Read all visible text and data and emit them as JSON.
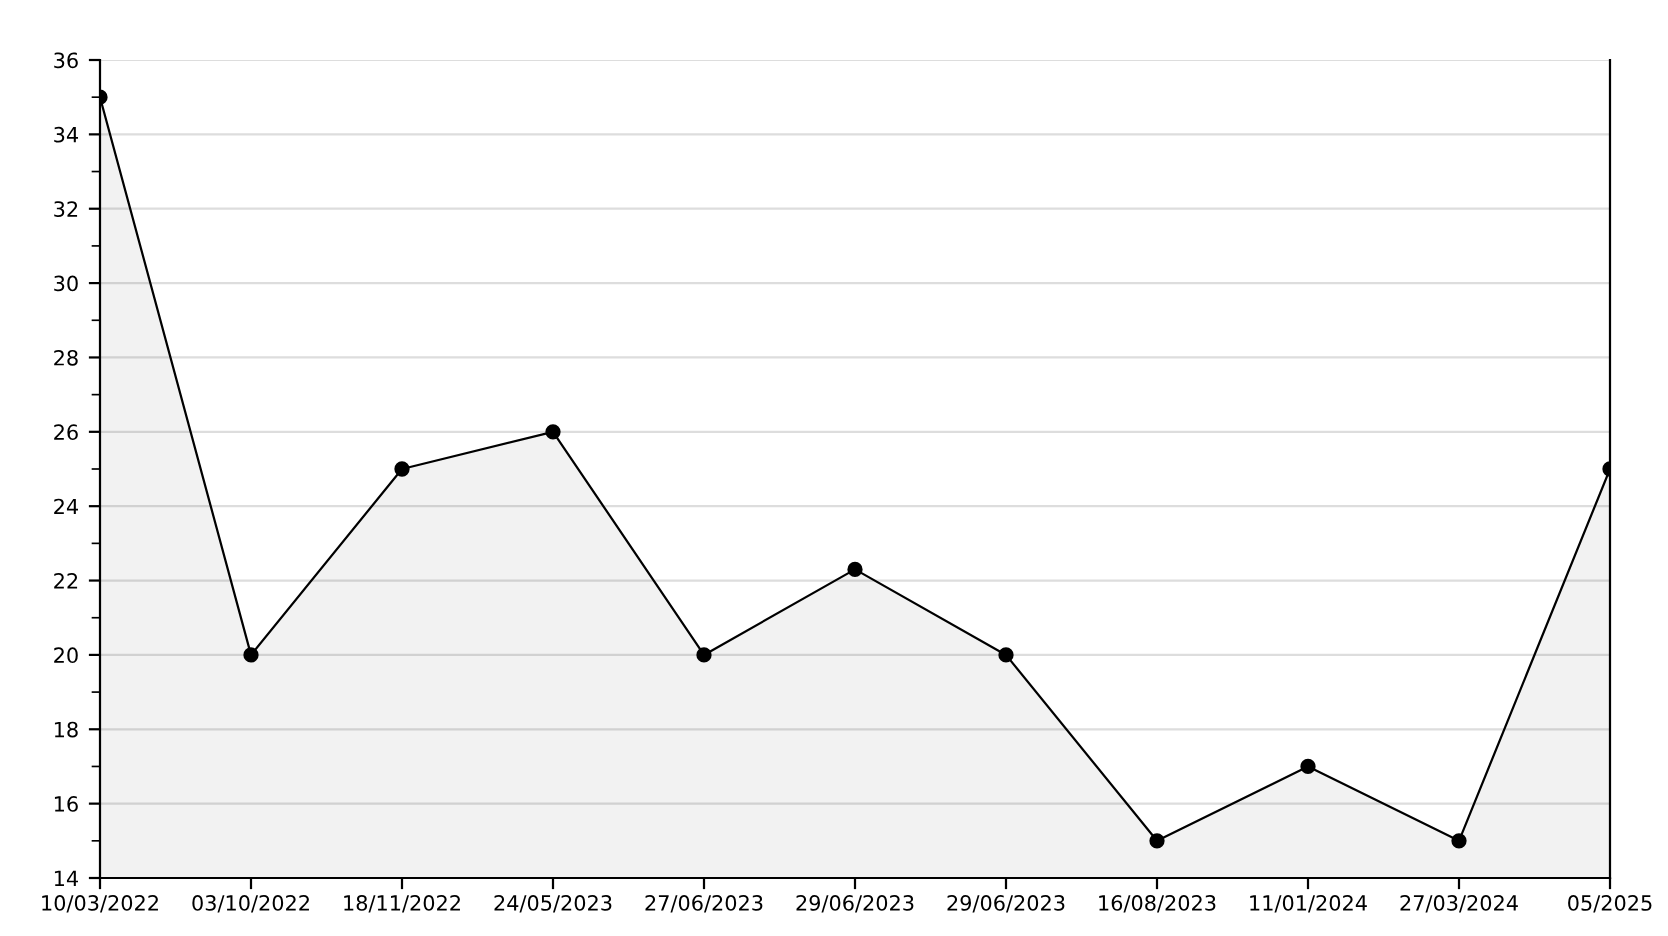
{
  "chart_data": {
    "type": "area",
    "categories": [
      "10/03/2022",
      "03/10/2022",
      "18/11/2022",
      "24/05/2023",
      "27/06/2023",
      "29/06/2023",
      "29/06/2023",
      "16/08/2023",
      "11/01/2024",
      "27/03/2024",
      "05/2025"
    ],
    "series": [
      {
        "color": "#000000",
        "values": [
          35,
          20,
          25,
          26,
          20,
          22.3,
          20,
          15,
          17,
          15,
          25
        ]
      }
    ],
    "ylim": [
      14,
      36
    ],
    "yticks": [
      14,
      16,
      18,
      20,
      22,
      24,
      26,
      28,
      30,
      32,
      34,
      36
    ],
    "grid": "y",
    "marker": "circle",
    "line_style": "solid",
    "legend": false
  }
}
